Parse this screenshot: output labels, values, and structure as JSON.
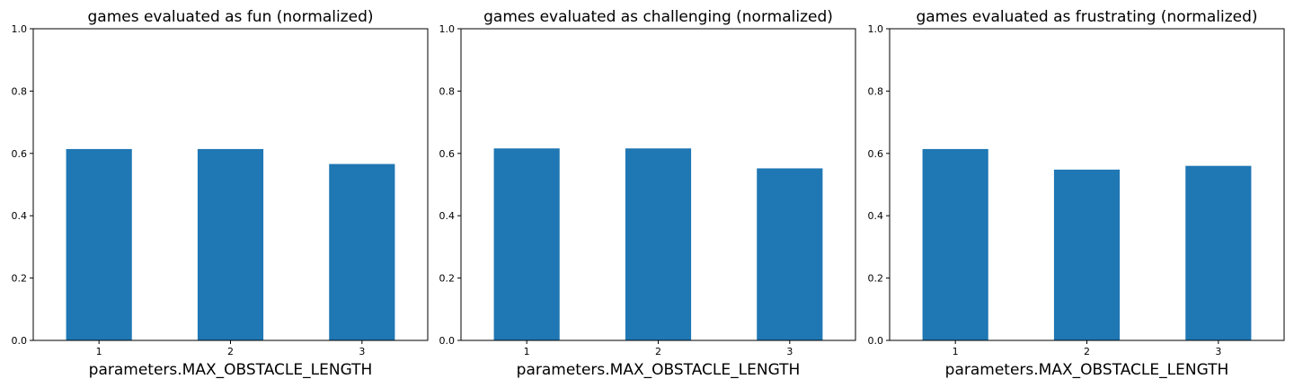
{
  "chart_data": [
    {
      "type": "bar",
      "title": "games evaluated as fun (normalized)",
      "xlabel": "parameters.MAX_OBSTACLE_LENGTH",
      "ylabel": "",
      "categories": [
        "1",
        "2",
        "3"
      ],
      "values": [
        0.614,
        0.614,
        0.566
      ],
      "ylim": [
        0,
        1.0
      ],
      "yticks": [
        "0.0",
        "0.2",
        "0.4",
        "0.6",
        "0.8",
        "1.0"
      ],
      "bar_color": "#1f77b4",
      "grid": false,
      "legend": "none"
    },
    {
      "type": "bar",
      "title": "games evaluated as challenging (normalized)",
      "xlabel": "parameters.MAX_OBSTACLE_LENGTH",
      "ylabel": "",
      "categories": [
        "1",
        "2",
        "3"
      ],
      "values": [
        0.616,
        0.616,
        0.552
      ],
      "ylim": [
        0,
        1.0
      ],
      "yticks": [
        "0.0",
        "0.2",
        "0.4",
        "0.6",
        "0.8",
        "1.0"
      ],
      "bar_color": "#1f77b4",
      "grid": false,
      "legend": "none"
    },
    {
      "type": "bar",
      "title": "games evaluated as frustrating (normalized)",
      "xlabel": "parameters.MAX_OBSTACLE_LENGTH",
      "ylabel": "",
      "categories": [
        "1",
        "2",
        "3"
      ],
      "values": [
        0.614,
        0.548,
        0.56
      ],
      "ylim": [
        0,
        1.0
      ],
      "yticks": [
        "0.0",
        "0.2",
        "0.4",
        "0.6",
        "0.8",
        "1.0"
      ],
      "bar_color": "#1f77b4",
      "grid": false,
      "legend": "none"
    }
  ]
}
